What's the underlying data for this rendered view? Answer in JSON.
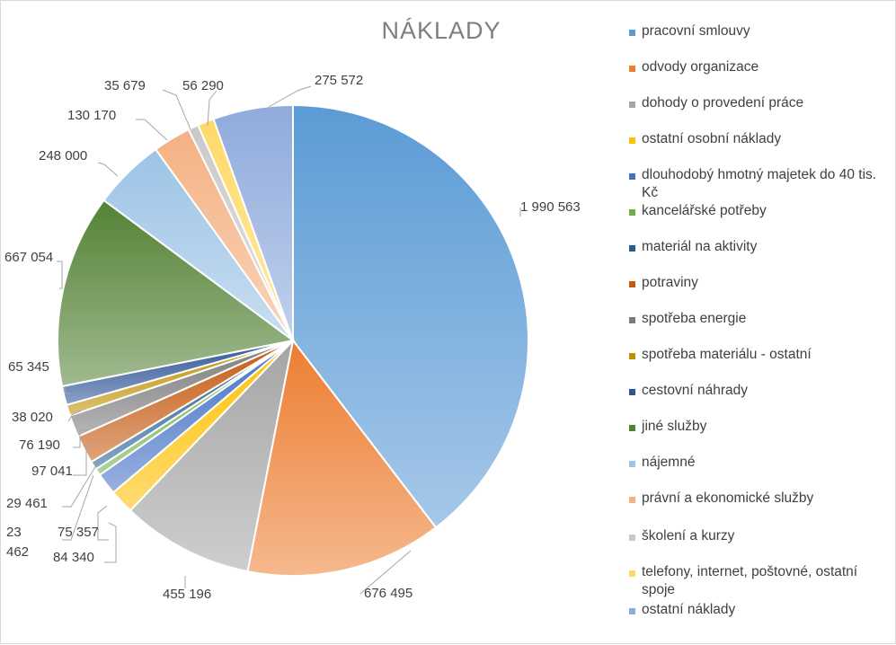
{
  "chart_data": {
    "type": "pie",
    "title": "NÁKLADY",
    "legend_position": "right",
    "slices": [
      {
        "name": "pracovní smlouvy",
        "value": 1990563,
        "label": "1 990 563",
        "color": "#5b9bd5"
      },
      {
        "name": "odvody organizace",
        "value": 676495,
        "label": "676 495",
        "color": "#ed7d31"
      },
      {
        "name": "dohody o provedení práce",
        "value": 455196,
        "label": "455 196",
        "color": "#a5a5a5"
      },
      {
        "name": "ostatní osobní náklady",
        "value": 84340,
        "label": "84 340",
        "color": "#ffc000"
      },
      {
        "name": "dlouhodobý hmotný majetek do 40 tis. Kč",
        "value": 75357,
        "label": "75 357",
        "color": "#4472c4"
      },
      {
        "name": "kancelářské potřeby",
        "value": 23462,
        "label": "23\n462",
        "color": "#70ad47"
      },
      {
        "name": "materiál na aktivity",
        "value": 29461,
        "label": "29 461",
        "color": "#255e91"
      },
      {
        "name": "potraviny",
        "value": 97041,
        "label": "97 041",
        "color": "#c55a11"
      },
      {
        "name": "spotřeba energie",
        "value": 76190,
        "label": "76 190",
        "color": "#7b7b7b"
      },
      {
        "name": "spotřeba materiálu - ostatní",
        "value": 38020,
        "label": "38 020",
        "color": "#bf8f00"
      },
      {
        "name": "cestovní náhrady",
        "value": 65345,
        "label": "65 345",
        "color": "#2f5597"
      },
      {
        "name": "jiné služby",
        "value": 667054,
        "label": "667 054",
        "color": "#548235"
      },
      {
        "name": "nájemné",
        "value": 248000,
        "label": "248 000",
        "color": "#9dc3e6"
      },
      {
        "name": "právní a ekonomické služby",
        "value": 130170,
        "label": "130 170",
        "color": "#f4b183"
      },
      {
        "name": "školení a kurzy",
        "value": 35679,
        "label": "35 679",
        "color": "#c9c9c9"
      },
      {
        "name": "telefony, internet, poštovné, ostatní spoje",
        "value": 56290,
        "label": "56 290",
        "color": "#ffd966"
      },
      {
        "name": "ostatní náklady",
        "value": 275572,
        "label": "275 572",
        "color": "#8faadc"
      }
    ]
  }
}
